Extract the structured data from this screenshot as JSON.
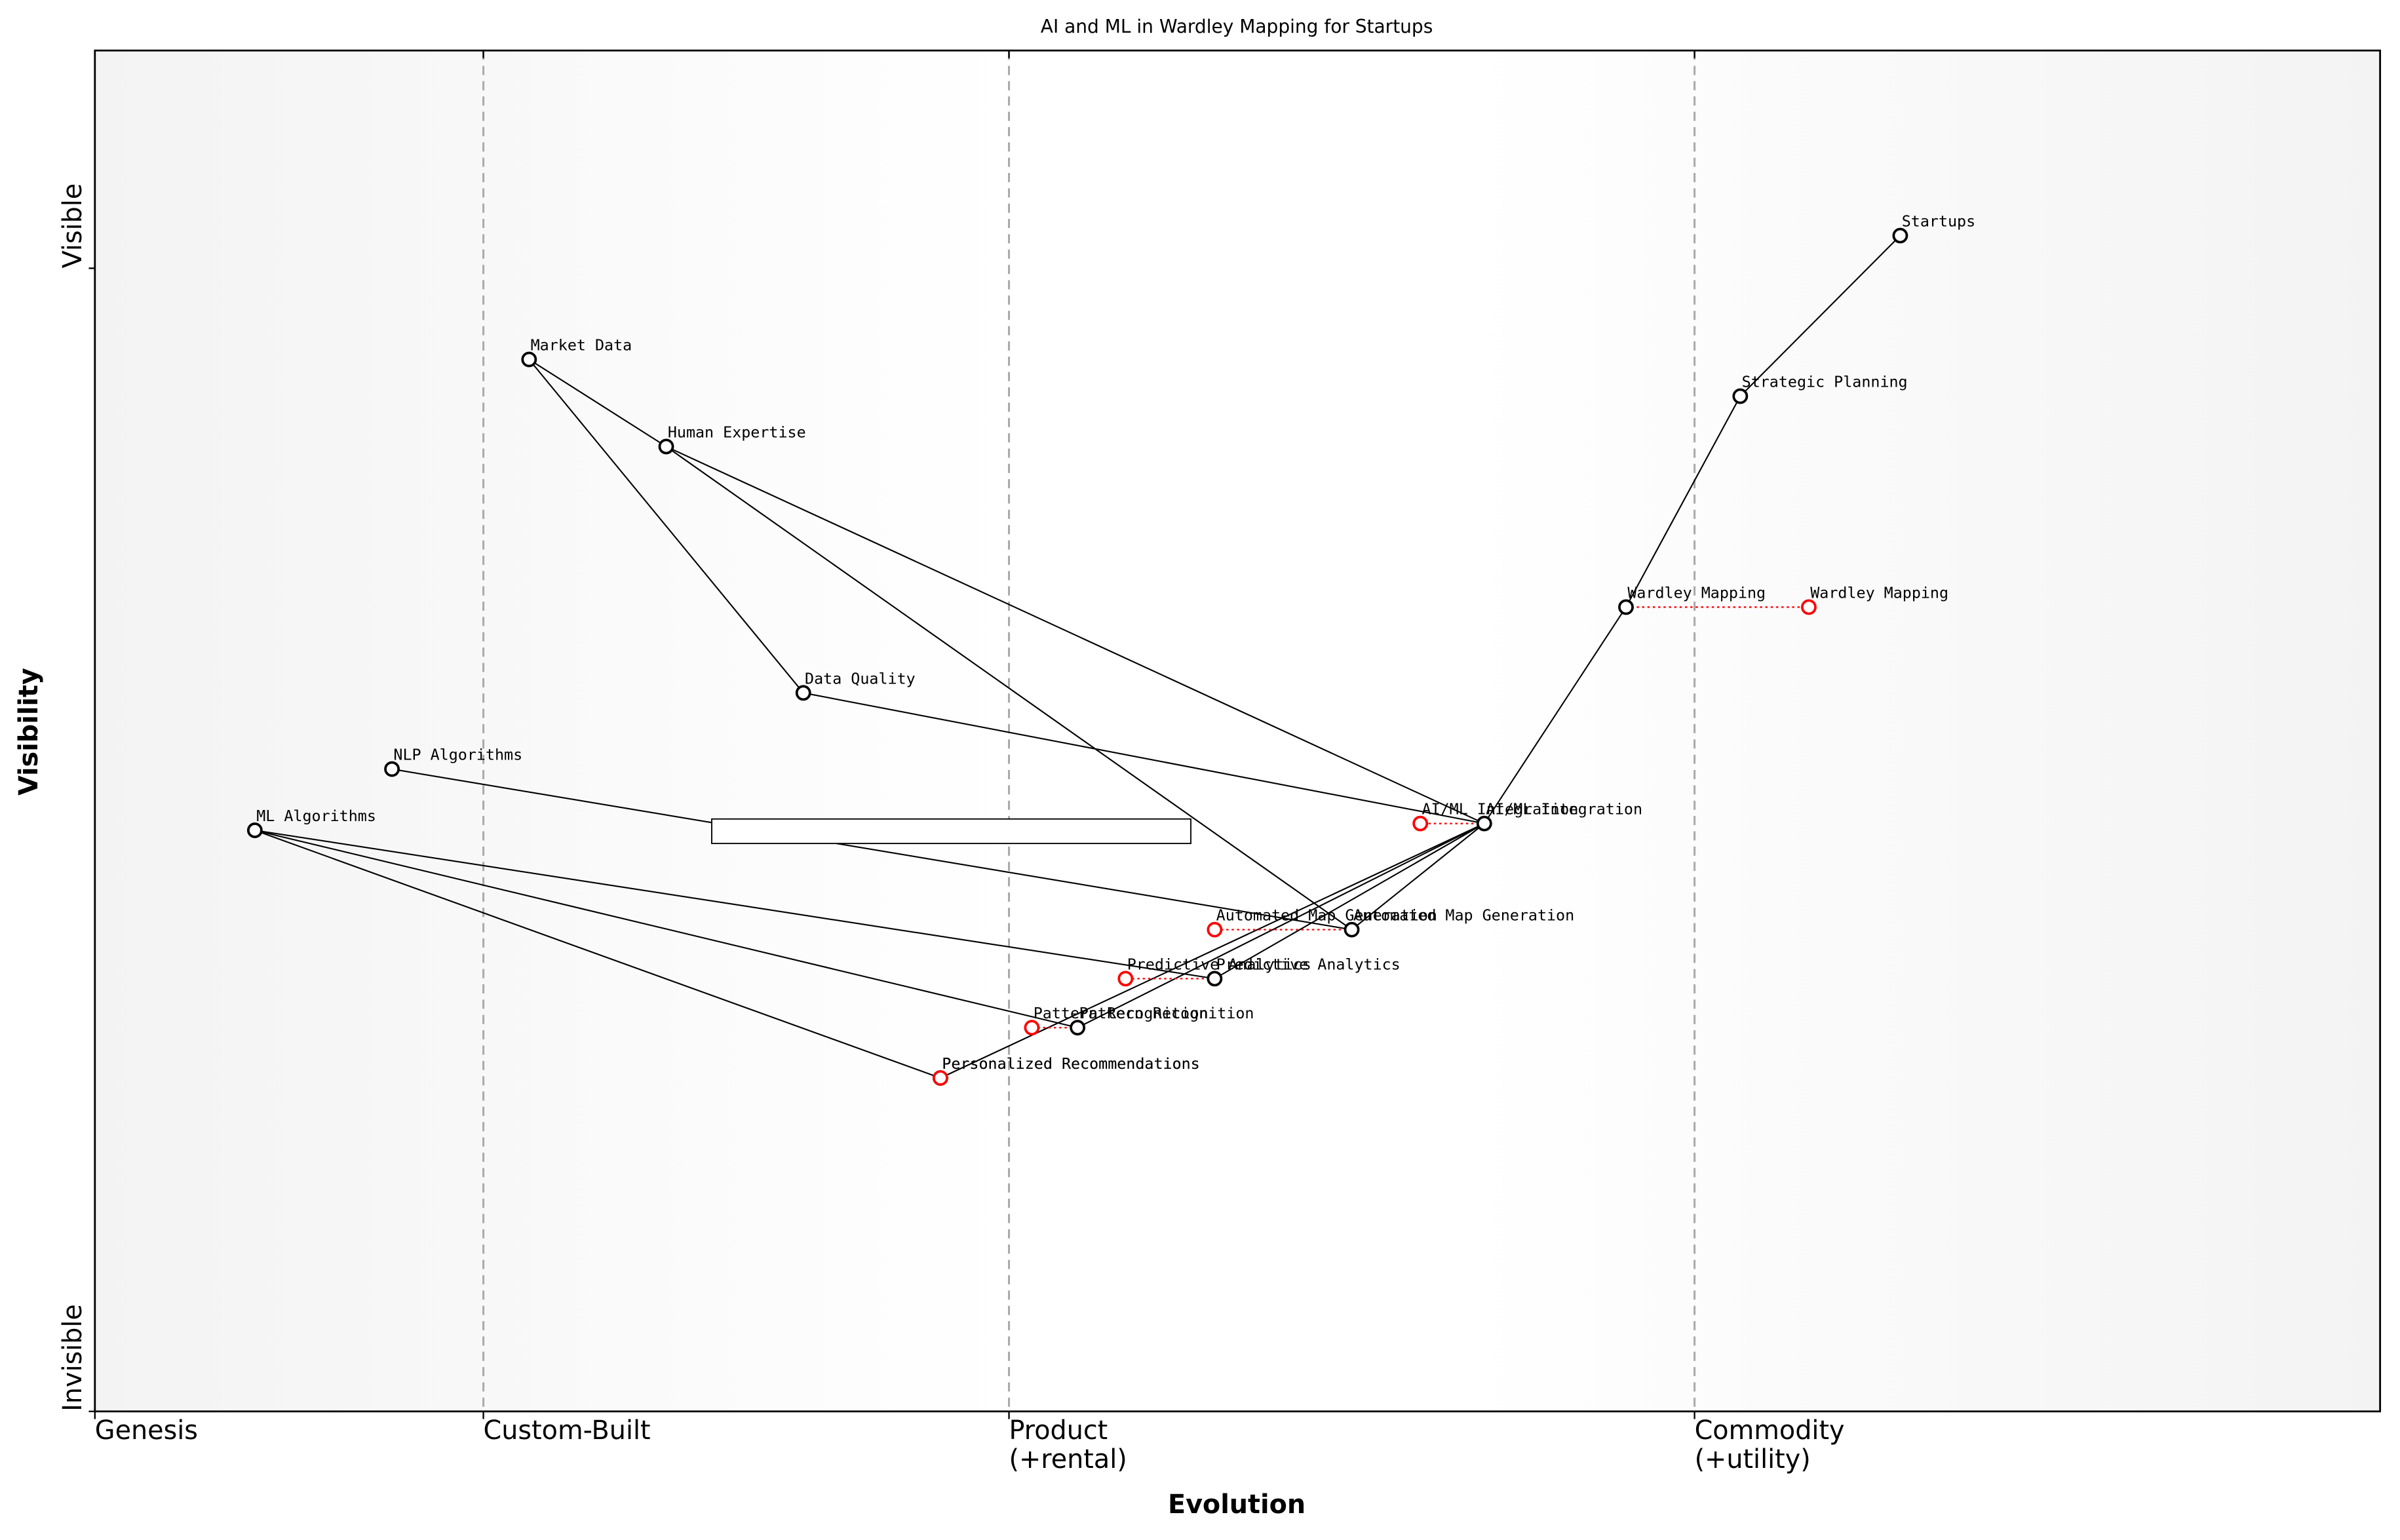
{
  "chart_data": {
    "type": "wardley",
    "title": "AI and ML in Wardley Mapping for Startups",
    "xlabel": "Evolution",
    "ylabel": "Visibility",
    "xlim": [
      0,
      1
    ],
    "ylim": [
      0,
      1
    ],
    "xticks": [
      {
        "value": 0,
        "label": "Genesis"
      },
      {
        "value": 0.17,
        "label": "Custom-Built"
      },
      {
        "value": 0.4,
        "label": "Product\n(+rental)"
      },
      {
        "value": 0.7,
        "label": "Commodity\n(+utility)"
      }
    ],
    "yticks": [
      {
        "value": 0,
        "label": "Invisible"
      },
      {
        "value": 0.84,
        "label": "Visible"
      }
    ],
    "stage_lines": true,
    "components": [
      {
        "name": "Startups",
        "evolution": 0.79,
        "visibility": 0.864
      },
      {
        "name": "Strategic Planning",
        "evolution": 0.72,
        "visibility": 0.746
      },
      {
        "name": "Wardley Mapping",
        "evolution": 0.67,
        "visibility": 0.591,
        "evolve": 0.75
      },
      {
        "name": "Market Data",
        "evolution": 0.19,
        "visibility": 0.773
      },
      {
        "name": "Human Expertise",
        "evolution": 0.25,
        "visibility": 0.709
      },
      {
        "name": "Data Quality",
        "evolution": 0.31,
        "visibility": 0.528
      },
      {
        "name": "NLP Algorithms",
        "evolution": 0.13,
        "visibility": 0.472
      },
      {
        "name": "ML Algorithms",
        "evolution": 0.07,
        "visibility": 0.427
      },
      {
        "name": "AI/ML Integration",
        "evolution": 0.608,
        "visibility": 0.432,
        "evolve": 0.58
      },
      {
        "name": "Automated Map Generation",
        "evolution": 0.55,
        "visibility": 0.354,
        "evolve": 0.49
      },
      {
        "name": "Predictive Analytics",
        "evolution": 0.49,
        "visibility": 0.318,
        "evolve": 0.451
      },
      {
        "name": "Pattern Recognition",
        "evolution": 0.43,
        "visibility": 0.282,
        "evolve": 0.41
      },
      {
        "name": "Personalized Recommendations",
        "evolution": 0.37,
        "visibility": 0.245,
        "evolve": 0.37
      }
    ],
    "links": [
      [
        "Startups",
        "Strategic Planning"
      ],
      [
        "Strategic Planning",
        "Wardley Mapping"
      ],
      [
        "Wardley Mapping",
        "AI/ML Integration"
      ],
      [
        "Market Data",
        "Data Quality"
      ],
      [
        "Market Data",
        "Human Expertise"
      ],
      [
        "Data Quality",
        "AI/ML Integration"
      ],
      [
        "Human Expertise",
        "AI/ML Integration"
      ],
      [
        "Human Expertise",
        "Automated Map Generation"
      ],
      [
        "NLP Algorithms",
        "Automated Map Generation"
      ],
      [
        "ML Algorithms",
        "Predictive Analytics"
      ],
      [
        "ML Algorithms",
        "Pattern Recognition"
      ],
      [
        "ML Algorithms",
        "Personalized Recommendations"
      ],
      [
        "AI/ML Integration",
        "Automated Map Generation"
      ],
      [
        "AI/ML Integration",
        "Predictive Analytics"
      ],
      [
        "AI/ML Integration",
        "Pattern Recognition"
      ],
      [
        "AI/ML Integration",
        "Personalized Recommendations"
      ]
    ],
    "component_color": "#000000",
    "evolve_color": "#ff0000"
  }
}
